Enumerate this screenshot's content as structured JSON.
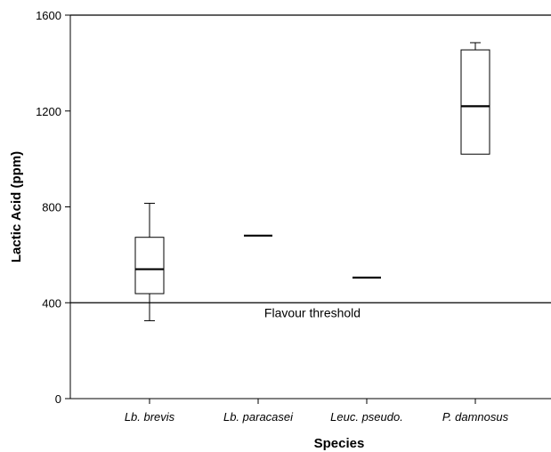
{
  "chart_data": {
    "type": "box",
    "xlabel": "Species",
    "ylabel": "Lactic Acid (ppm)",
    "ylim": [
      0,
      1600
    ],
    "yticks": [
      0,
      400,
      800,
      1200,
      1600
    ],
    "ytick_labels": [
      "0",
      "400",
      "800",
      "1200",
      "1600"
    ],
    "categories": [
      "Lb. brevis",
      "Lb. paracasei",
      "Leuc. pseudo.",
      "P. damnosus"
    ],
    "boxes": [
      {
        "category": "Lb. brevis",
        "min": 325,
        "q1": 438,
        "median": 540,
        "q3": 673,
        "max": 815
      },
      {
        "category": "Lb. paracasei",
        "min": 680,
        "q1": 680,
        "median": 680,
        "q3": 680,
        "max": 680
      },
      {
        "category": "Leuc. pseudo.",
        "min": 505,
        "q1": 505,
        "median": 505,
        "q3": 505,
        "max": 505
      },
      {
        "category": "P. damnosus",
        "min": 1020,
        "q1": 1020,
        "median": 1220,
        "q3": 1455,
        "max": 1485
      }
    ],
    "reference_lines": [
      {
        "value": 400,
        "label": "Flavour threshold"
      },
      {
        "value": 1600,
        "label": ""
      }
    ],
    "grid": false
  }
}
